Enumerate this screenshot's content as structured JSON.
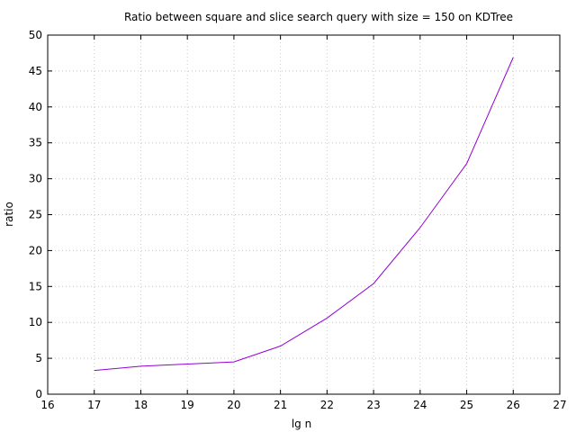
{
  "chart_data": {
    "type": "line",
    "title": "Ratio between square and slice search query with size = 150 on KDTree",
    "xlabel": "lg n",
    "ylabel": "ratio",
    "xlim": [
      16,
      27
    ],
    "ylim": [
      0,
      50
    ],
    "xticks": [
      16,
      17,
      18,
      19,
      20,
      21,
      22,
      23,
      24,
      25,
      26,
      27
    ],
    "yticks": [
      0,
      5,
      10,
      15,
      20,
      25,
      30,
      35,
      40,
      45,
      50
    ],
    "grid": true,
    "series": [
      {
        "color": "#9400d3",
        "x": [
          17,
          18,
          19,
          20,
          21,
          22,
          23,
          24,
          25,
          26
        ],
        "y": [
          3.3,
          3.9,
          4.2,
          4.5,
          6.7,
          10.6,
          15.4,
          23.2,
          32.1,
          46.9
        ]
      }
    ]
  }
}
